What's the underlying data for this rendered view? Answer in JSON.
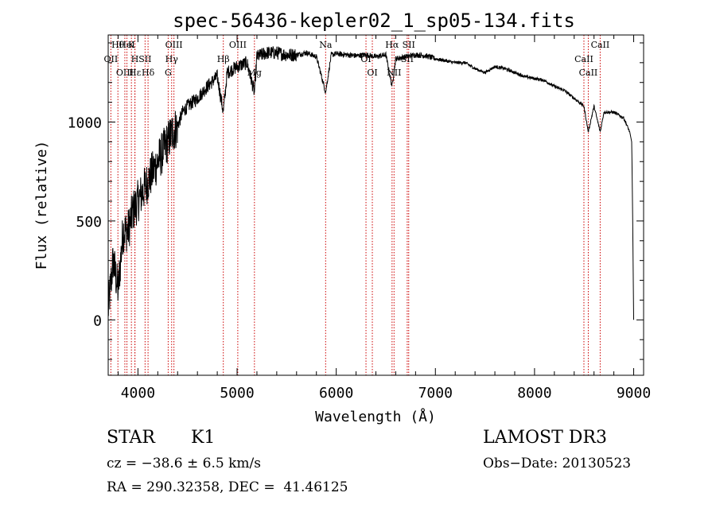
{
  "chart_data": {
    "type": "line",
    "title": "spec-56436-kepler02_1_sp05-134.fits",
    "xlabel": "Wavelength (Å)",
    "ylabel": "Flux (relative)",
    "xlim": [
      3700,
      9100
    ],
    "ylim": [
      -280,
      1440
    ],
    "xticks": [
      4000,
      5000,
      6000,
      7000,
      8000,
      9000
    ],
    "xtick_labels": [
      "4000",
      "5000",
      "6000",
      "7000",
      "8000",
      "9000"
    ],
    "yticks": [
      0,
      500,
      1000
    ],
    "ytick_labels": [
      "0",
      "500",
      "1000"
    ],
    "grid": false,
    "series": [
      {
        "name": "spectrum",
        "x": [
          3700,
          3750,
          3800,
          3850,
          3900,
          3950,
          4000,
          4050,
          4100,
          4150,
          4200,
          4250,
          4300,
          4350,
          4400,
          4450,
          4500,
          4600,
          4700,
          4800,
          4861,
          4900,
          5000,
          5100,
          5175,
          5200,
          5300,
          5400,
          5500,
          5600,
          5700,
          5800,
          5893,
          5950,
          6000,
          6100,
          6200,
          6300,
          6400,
          6500,
          6563,
          6600,
          6700,
          6800,
          6900,
          7000,
          7100,
          7200,
          7300,
          7400,
          7500,
          7600,
          7700,
          7800,
          7900,
          8000,
          8100,
          8200,
          8300,
          8400,
          8498,
          8542,
          8600,
          8662,
          8700,
          8800,
          8900,
          8960,
          8980,
          8990,
          9000
        ],
        "y": [
          50,
          300,
          150,
          450,
          450,
          550,
          600,
          650,
          700,
          750,
          800,
          850,
          900,
          950,
          980,
          1050,
          1080,
          1120,
          1180,
          1230,
          1050,
          1250,
          1280,
          1300,
          1150,
          1330,
          1350,
          1350,
          1340,
          1340,
          1350,
          1330,
          1150,
          1340,
          1345,
          1340,
          1335,
          1340,
          1330,
          1340,
          1180,
          1320,
          1330,
          1340,
          1335,
          1320,
          1310,
          1300,
          1300,
          1270,
          1250,
          1280,
          1270,
          1250,
          1230,
          1220,
          1210,
          1180,
          1160,
          1120,
          1080,
          950,
          1080,
          950,
          1050,
          1050,
          1020,
          950,
          900,
          500,
          0
        ]
      }
    ],
    "lines": [
      {
        "label": "Hθ",
        "wave": 3798
      },
      {
        "label": "OII",
        "wave": 3727
      },
      {
        "label": "OIII",
        "wave": 3868
      },
      {
        "label": "K",
        "wave": 3934
      },
      {
        "label": "H",
        "wave": 3969
      },
      {
        "label": "Hε",
        "wave": 3970
      },
      {
        "label": "HeI",
        "wave": 3889
      },
      {
        "label": "SII",
        "wave": 4072
      },
      {
        "label": "Hδ",
        "wave": 4102
      },
      {
        "label": "OIII",
        "wave": 4363
      },
      {
        "label": "Hγ",
        "wave": 4340
      },
      {
        "label": "G",
        "wave": 4305
      },
      {
        "label": "OIII",
        "wave": 5007
      },
      {
        "label": "Hβ",
        "wave": 4861
      },
      {
        "label": "Mg",
        "wave": 5175
      },
      {
        "label": "Na",
        "wave": 5893
      },
      {
        "label": "OI",
        "wave": 6300
      },
      {
        "label": "OI",
        "wave": 6364
      },
      {
        "label": "Hα",
        "wave": 6563
      },
      {
        "label": "SII",
        "wave": 6716
      },
      {
        "label": "NII",
        "wave": 6583
      },
      {
        "label": "SII",
        "wave": 6731
      },
      {
        "label": "CaII",
        "wave": 8498
      },
      {
        "label": "CaII",
        "wave": 8542
      },
      {
        "label": "CaII",
        "wave": 8662
      }
    ]
  },
  "info": {
    "object_class": "STAR",
    "subclass": "K1",
    "survey": "LAMOST DR3",
    "cz": "cz = −38.6 ± 6.5 km/s",
    "obs_date": "Obs−Date: 20130523",
    "coords": "RA = 290.32358, DEC =  41.46125"
  }
}
